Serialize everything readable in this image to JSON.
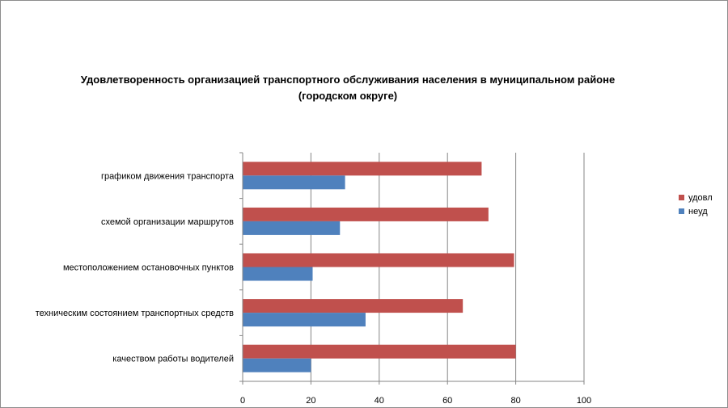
{
  "chart_data": {
    "type": "bar",
    "orientation": "horizontal",
    "title_lines": [
      "Удовлетворенность организацией транспортного обслуживания населения в муниципальном районе",
      "(городском округе)"
    ],
    "categories": [
      "графиком движения транспорта",
      "схемой организации маршрутов",
      "местоположением остановочных пунктов",
      "техническим состоянием транспортных средств",
      "качеством работы водителей"
    ],
    "series": [
      {
        "name": "удовл",
        "color": "#c0504d",
        "values": [
          70,
          72,
          79.5,
          64.5,
          80
        ]
      },
      {
        "name": "неуд",
        "color": "#4f81bd",
        "values": [
          30,
          28.5,
          20.5,
          36,
          20
        ]
      }
    ],
    "xlim": [
      0,
      100
    ],
    "xticks": [
      "0",
      "20",
      "40",
      "60",
      "80",
      "100"
    ],
    "grid": true,
    "legend_position": "right"
  }
}
